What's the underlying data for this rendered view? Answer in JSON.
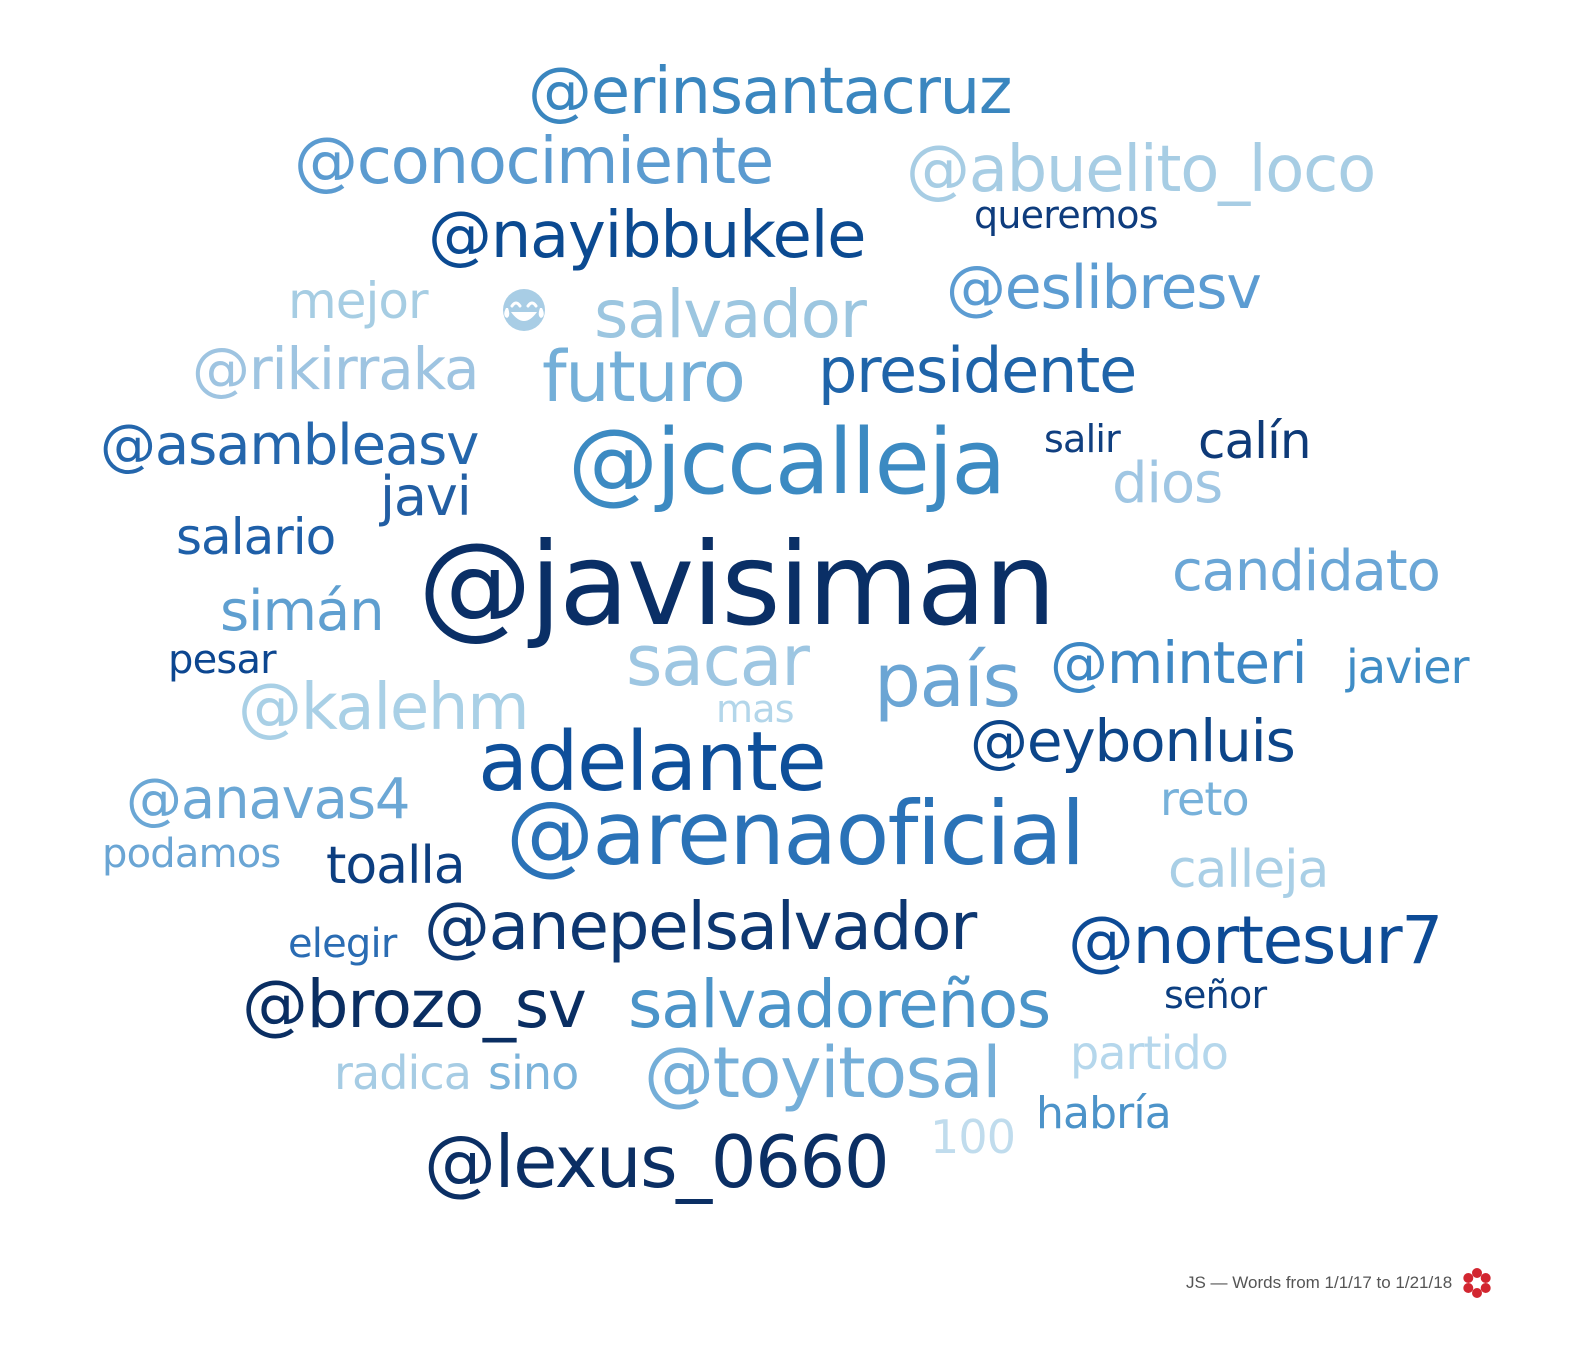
{
  "words": [
    {
      "text": "@erinsantacruz",
      "size": 5,
      "color": "#3a86bf"
    },
    {
      "text": "@conocimiente",
      "size": 5,
      "color": "#5b9bd0"
    },
    {
      "text": "@abuelito_loco",
      "size": 5,
      "color": "#a7cde4"
    },
    {
      "text": "@nayibbukele",
      "size": 5,
      "color": "#0b4a91"
    },
    {
      "text": "queremos",
      "size": 2,
      "color": "#0e3c7d"
    },
    {
      "text": "mejor",
      "size": 4,
      "color": "#a6cde3"
    },
    {
      "text": "salvador",
      "size": 5,
      "color": "#9cc6e0"
    },
    {
      "text": "@eslibresv",
      "size": 5,
      "color": "#5c9cd2"
    },
    {
      "text": "@rikirraka",
      "size": 5,
      "color": "#9ec4e1"
    },
    {
      "text": "futuro",
      "size": 6,
      "color": "#74afd8"
    },
    {
      "text": "presidente",
      "size": 5,
      "color": "#1f64a9"
    },
    {
      "text": "@asambleasv",
      "size": 5,
      "color": "#2466ac"
    },
    {
      "text": "@jccalleja",
      "size": 8,
      "color": "#3c8ac2"
    },
    {
      "text": "salir",
      "size": 2,
      "color": "#103f80"
    },
    {
      "text": "calín",
      "size": 4,
      "color": "#0e3a78"
    },
    {
      "text": "dios",
      "size": 5,
      "color": "#9fc6e3"
    },
    {
      "text": "javi",
      "size": 5,
      "color": "#225ea3"
    },
    {
      "text": "salario",
      "size": 4,
      "color": "#1e5fa8"
    },
    {
      "text": "@javisiman",
      "size": 10,
      "color": "#0a2f66"
    },
    {
      "text": "candidato",
      "size": 5,
      "color": "#6aa6d6"
    },
    {
      "text": "simán",
      "size": 5,
      "color": "#5f9fd0"
    },
    {
      "text": "pesar",
      "size": 3,
      "color": "#0c4690"
    },
    {
      "text": "sacar",
      "size": 6,
      "color": "#9dc6e2"
    },
    {
      "text": "país",
      "size": 7,
      "color": "#6ba5d4"
    },
    {
      "text": "@minteri",
      "size": 5,
      "color": "#3d87c4"
    },
    {
      "text": "javier",
      "size": 4,
      "color": "#3f8dc6"
    },
    {
      "text": "@kalehm",
      "size": 6,
      "color": "#a9d0e6"
    },
    {
      "text": "mas",
      "size": 3,
      "color": "#b3d6ea"
    },
    {
      "text": "adelante",
      "size": 8,
      "color": "#0e4f9a"
    },
    {
      "text": "@eybonluis",
      "size": 5,
      "color": "#0c4589"
    },
    {
      "text": "@anavas4",
      "size": 5,
      "color": "#6ba7d5"
    },
    {
      "text": "reto",
      "size": 4,
      "color": "#77b1da"
    },
    {
      "text": "@arenaoficial",
      "size": 8,
      "color": "#2a72b7"
    },
    {
      "text": "podamos",
      "size": 3,
      "color": "#6aa5d4"
    },
    {
      "text": "toalla",
      "size": 4,
      "color": "#0c3e80"
    },
    {
      "text": "calleja",
      "size": 4,
      "color": "#a9cfe6"
    },
    {
      "text": "@anepelsalvador",
      "size": 6,
      "color": "#0d3771"
    },
    {
      "text": "elegir",
      "size": 3,
      "color": "#2a6cb3"
    },
    {
      "text": "@nortesur7",
      "size": 6,
      "color": "#0d4b96"
    },
    {
      "text": "@brozo_sv",
      "size": 6,
      "color": "#0a2e62"
    },
    {
      "text": "salvadoreños",
      "size": 6,
      "color": "#4b94c9"
    },
    {
      "text": "señor",
      "size": 3,
      "color": "#0c3e80"
    },
    {
      "text": "partido",
      "size": 4,
      "color": "#b5d7ec"
    },
    {
      "text": "radica",
      "size": 3,
      "color": "#a6cce4"
    },
    {
      "text": "sino",
      "size": 3,
      "color": "#7bb3da"
    },
    {
      "text": "@toyitosal",
      "size": 6,
      "color": "#74aed8"
    },
    {
      "text": "habría",
      "size": 4,
      "color": "#4c93c9"
    },
    {
      "text": "100",
      "size": 4,
      "color": "#c0dced"
    },
    {
      "text": "@lexus_0660",
      "size": 6,
      "color": "#0b2f64"
    }
  ],
  "emoji": {
    "icon": "face-with-tears-of-joy-icon",
    "color": "#a8cde5"
  },
  "footer": {
    "text": "JS — Words from 1/1/17 to 1/21/18",
    "logo_icon": "red-flower-logo-icon",
    "logo_color": "#d22630"
  }
}
